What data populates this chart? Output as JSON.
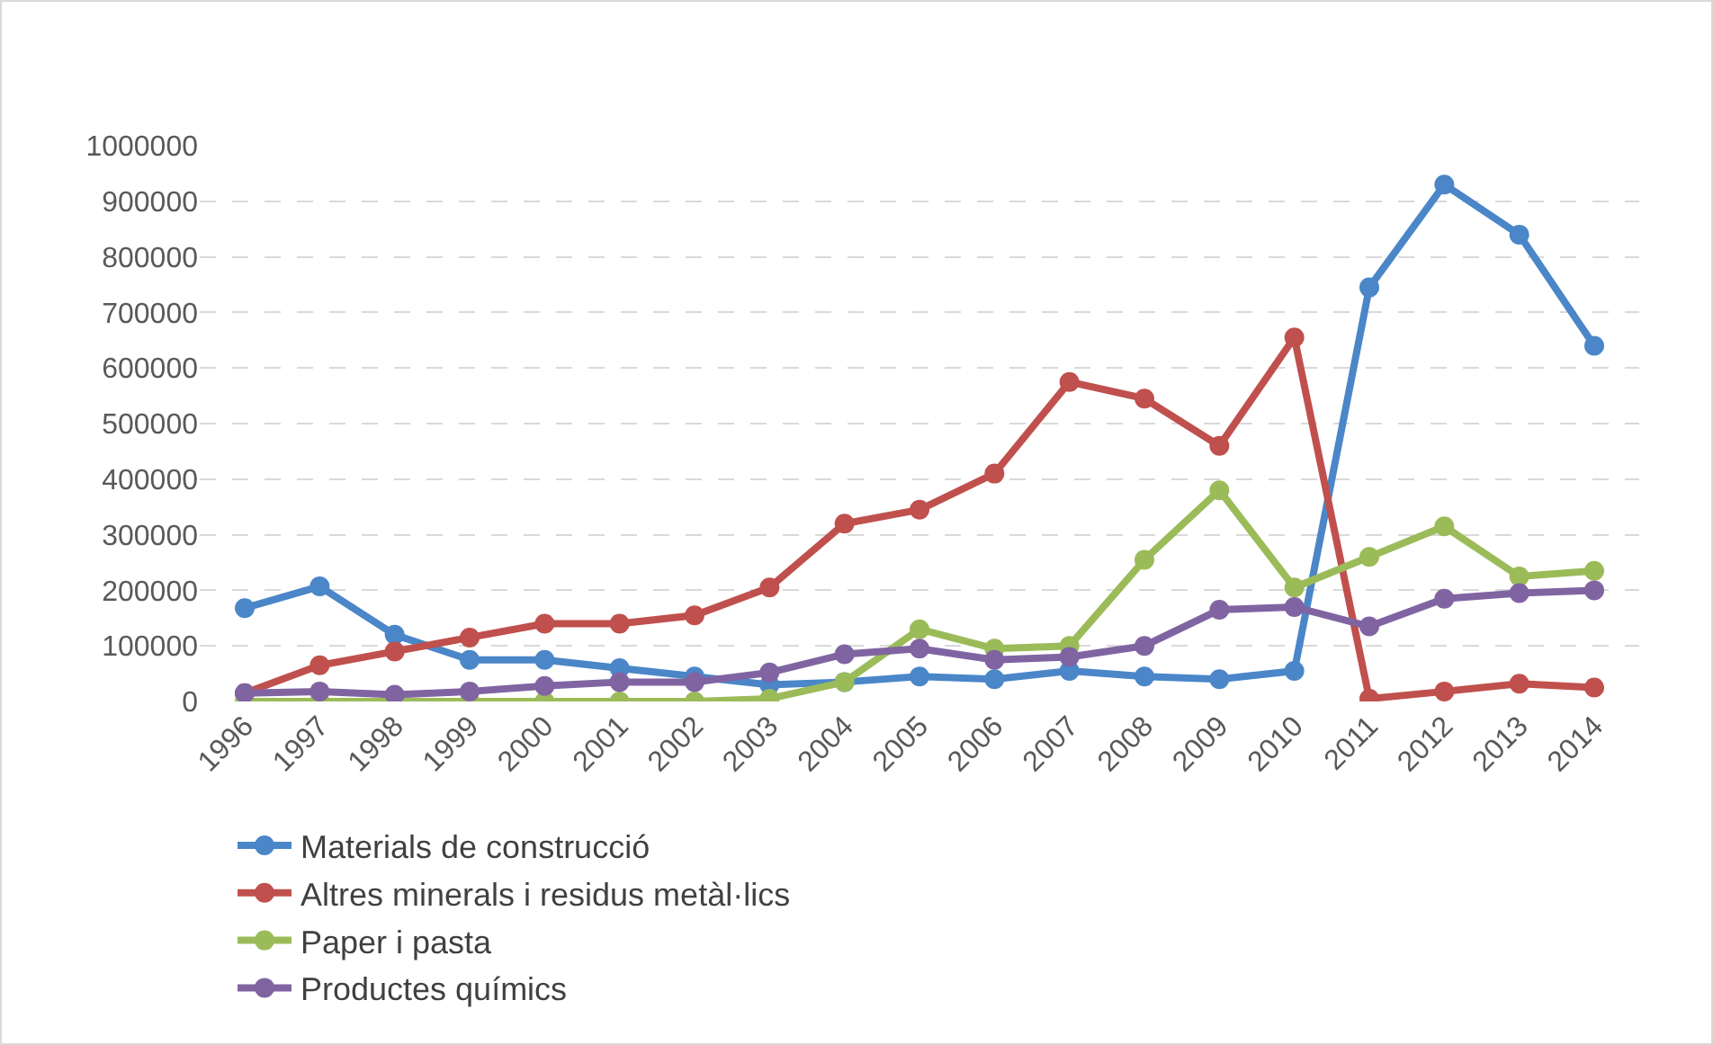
{
  "chart_data": {
    "type": "line",
    "categories": [
      "1996",
      "1997",
      "1998",
      "1999",
      "2000",
      "2001",
      "2002",
      "2003",
      "2004",
      "2005",
      "2006",
      "2007",
      "2008",
      "2009",
      "2010",
      "2011",
      "2012",
      "2013",
      "2014"
    ],
    "series": [
      {
        "name": "Materials de construcció",
        "color": "#4a86c8",
        "values": [
          168000,
          207000,
          120000,
          75000,
          75000,
          60000,
          45000,
          30000,
          35000,
          45000,
          40000,
          55000,
          45000,
          40000,
          55000,
          745000,
          930000,
          840000,
          640000
        ]
      },
      {
        "name": "Altres minerals i residus metàl·lics",
        "color": "#c0504d",
        "values": [
          15000,
          65000,
          90000,
          115000,
          140000,
          140000,
          155000,
          205000,
          320000,
          345000,
          410000,
          575000,
          545000,
          460000,
          655000,
          5000,
          18000,
          32000,
          25000
        ]
      },
      {
        "name": "Paper i pasta",
        "color": "#9bbb59",
        "values": [
          0,
          0,
          0,
          0,
          0,
          0,
          0,
          5000,
          35000,
          130000,
          95000,
          100000,
          255000,
          380000,
          205000,
          260000,
          315000,
          225000,
          235000
        ]
      },
      {
        "name": "Productes químics",
        "color": "#8064a2",
        "values": [
          15000,
          18000,
          12000,
          18000,
          28000,
          35000,
          35000,
          52000,
          85000,
          95000,
          75000,
          80000,
          100000,
          165000,
          170000,
          135000,
          185000,
          195000,
          200000
        ]
      }
    ],
    "ylim": [
      0,
      1000000
    ],
    "yticks": [
      0,
      100000,
      200000,
      300000,
      400000,
      500000,
      600000,
      700000,
      800000,
      900000,
      1000000
    ],
    "grid": "y",
    "legend": "bottom",
    "marker": "circle",
    "line_style": "solid"
  }
}
